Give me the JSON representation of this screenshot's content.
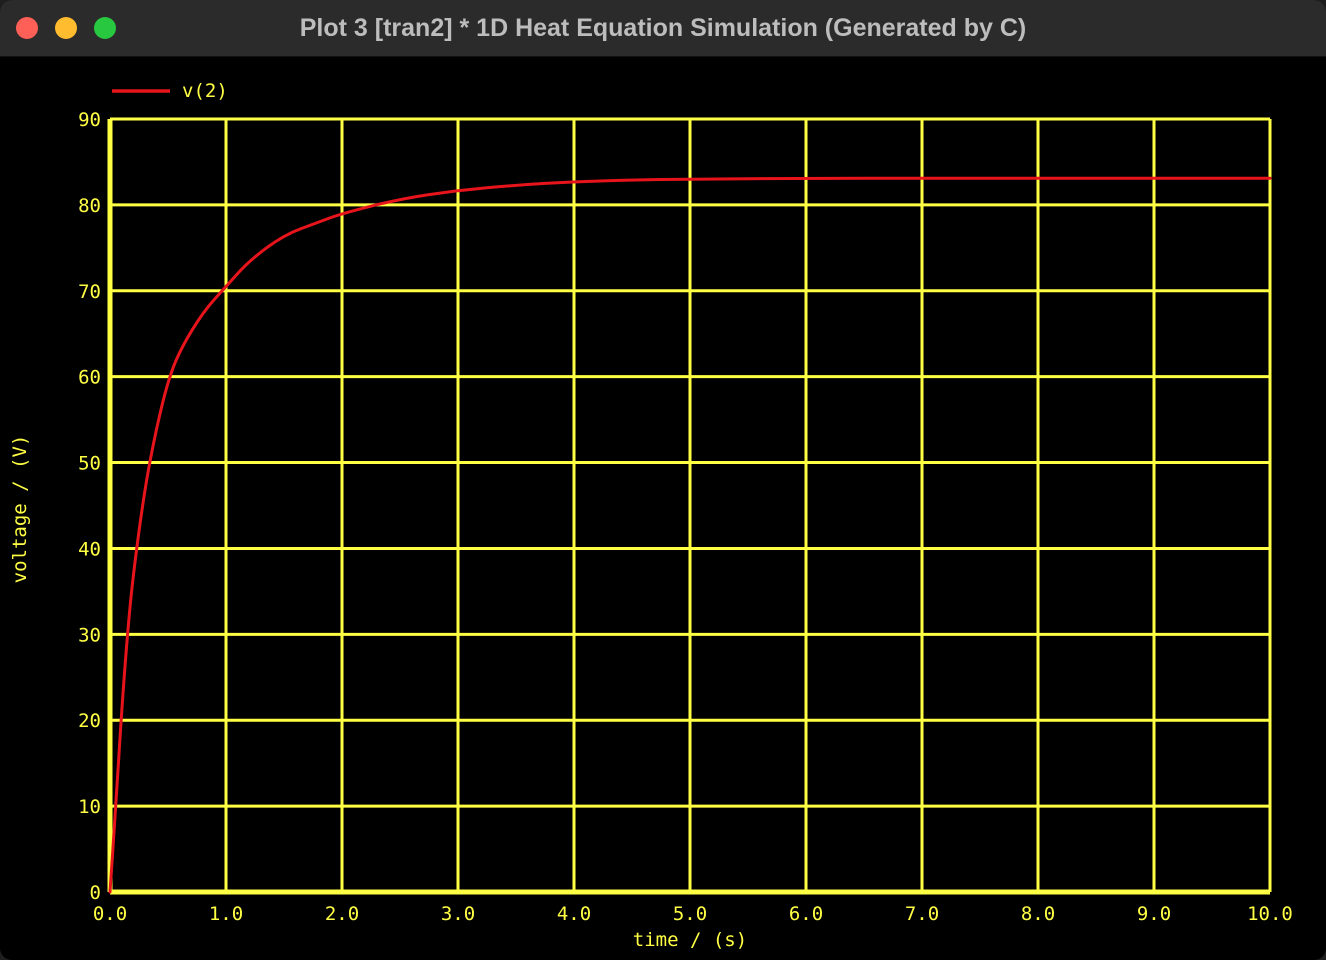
{
  "window": {
    "title": "Plot 3 [tran2] * 1D Heat Equation Simulation (Generated by C)"
  },
  "colors": {
    "background": "#000000",
    "grid": "#ffff44",
    "text": "#ffff44",
    "series": "#e8141c",
    "titlebar": "#2b2b2b"
  },
  "chart_data": {
    "type": "line",
    "xlabel": "time / (s)",
    "ylabel": "voltage / (V)",
    "xlim": [
      0,
      10
    ],
    "ylim": [
      0,
      90
    ],
    "x_ticks": [
      "0.0",
      "1.0",
      "2.0",
      "3.0",
      "4.0",
      "5.0",
      "6.0",
      "7.0",
      "8.0",
      "9.0",
      "10.0"
    ],
    "y_ticks": [
      "0",
      "10",
      "20",
      "30",
      "40",
      "50",
      "60",
      "70",
      "80",
      "90"
    ],
    "grid": true,
    "legend_position": "top-left",
    "series": [
      {
        "name": "v(2)",
        "x": [
          0.0,
          0.05,
          0.1,
          0.15,
          0.2,
          0.3,
          0.4,
          0.5,
          0.6,
          0.8,
          1.0,
          1.2,
          1.5,
          1.8,
          2.0,
          2.5,
          3.0,
          3.5,
          4.0,
          4.5,
          5.0,
          6.0,
          7.0,
          8.0,
          9.0,
          10.0
        ],
        "y": [
          0,
          10,
          21,
          30,
          37,
          47,
          54,
          59.5,
          63,
          67.5,
          70.5,
          73.5,
          76.5,
          78,
          79,
          80.7,
          81.7,
          82.3,
          82.7,
          82.9,
          83.0,
          83.1,
          83.1,
          83.1,
          83.1,
          83.1
        ]
      }
    ]
  }
}
